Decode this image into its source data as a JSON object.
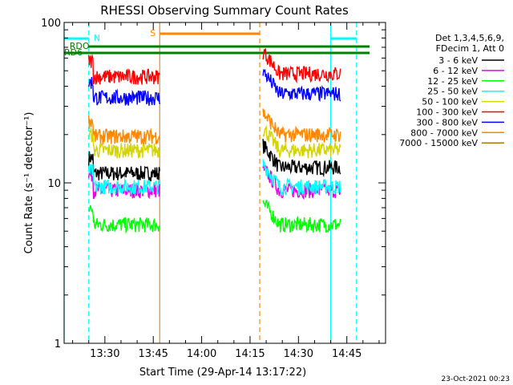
{
  "chart_data": {
    "type": "line",
    "title": "RHESSI Observing Summary Count Rates",
    "xlabel": "Start Time (29-Apr-14 13:17:22)",
    "ylabel": "Count Rate (s⁻¹ detector⁻¹)",
    "yscale": "log",
    "ylim": [
      1,
      100
    ],
    "xlim": [
      "13:17:22",
      "14:57:00"
    ],
    "x_ticks": [
      "13:30",
      "13:45",
      "14:00",
      "14:15",
      "14:30",
      "14:45"
    ],
    "y_ticks": [
      "1",
      "10",
      "100"
    ],
    "legend_header": [
      "Det 1,3,4,5,6,9,",
      "FDecim 1, Att 0"
    ],
    "legend_placement": "right",
    "series": [
      {
        "name": "3 - 6 keV",
        "color": "#000000",
        "values_segment1": 11.5,
        "values_segment2": 12.5
      },
      {
        "name": "6 - 12 keV",
        "color": "#e800e8",
        "values_segment1": 9.0,
        "values_segment2": 9.0
      },
      {
        "name": "12 - 25 keV",
        "color": "#00ff00",
        "values_segment1": 5.5,
        "values_segment2": 5.5
      },
      {
        "name": "25 - 50 keV",
        "color": "#00ffff",
        "values_segment1": 9.5,
        "values_segment2": 9.5
      },
      {
        "name": "50 - 100 keV",
        "color": "#d4d400",
        "values_segment1": 16.0,
        "values_segment2": 16.0
      },
      {
        "name": "100 - 300 keV",
        "color": "#ff0000",
        "values_segment1": 46.0,
        "values_segment2": 48.0
      },
      {
        "name": "300 - 800 keV",
        "color": "#0000ff",
        "values_segment1": 34.0,
        "values_segment2": 36.0
      },
      {
        "name": "800 - 7000 keV",
        "color": "#ff8800",
        "values_segment1": 19.5,
        "values_segment2": 20.0
      },
      {
        "name": "7000 - 15000 keV",
        "color": "#aa7700",
        "values_segment1": null,
        "values_segment2": null
      }
    ],
    "segments": [
      {
        "start": "13:25",
        "end": "13:47"
      },
      {
        "start": "14:19",
        "end": "14:43"
      }
    ],
    "flag_labels": {
      "N": "N",
      "S": "S",
      "RDO": "RDO",
      "RD6": "RD6"
    },
    "flag_colors": {
      "night": "#00ffff",
      "saa": "#ff8800",
      "decimation": "#008000"
    },
    "date_stamp": "23-Oct-2021 00:23"
  }
}
